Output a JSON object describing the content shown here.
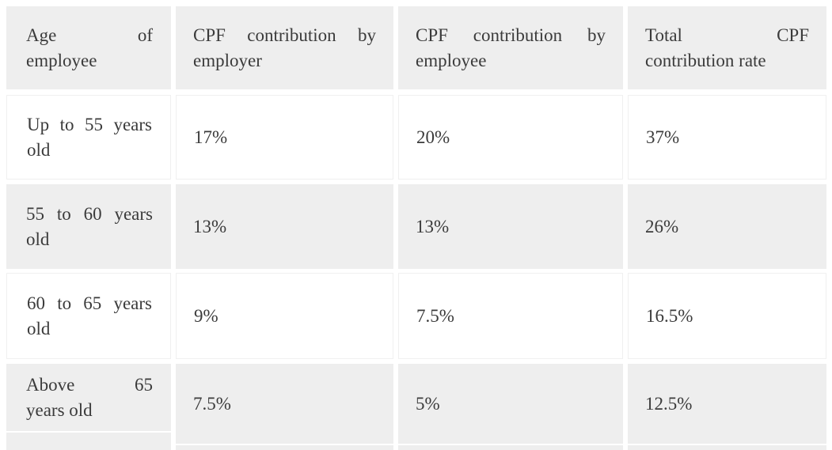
{
  "chart_data": {
    "type": "table",
    "title": "",
    "columns": [
      "Age of employee",
      "CPF contribution by employer",
      "CPF contribution by employee",
      "Total CPF contribution rate"
    ],
    "rows": [
      [
        "Up to 55 years old",
        "17%",
        "20%",
        "37%"
      ],
      [
        "55 to 60 years old",
        "13%",
        "13%",
        "26%"
      ],
      [
        "60 to 65 years old",
        "9%",
        "7.5%",
        "16.5%"
      ],
      [
        "Above 65 years old",
        "7.5%",
        "5%",
        "12.5%"
      ]
    ]
  },
  "display": {
    "headers": [
      {
        "label": "Age of employee",
        "lines": [
          "Age of",
          "employee"
        ]
      },
      {
        "label": "CPF contribution by employer",
        "lines": [
          "CPF contribution by",
          "employer"
        ]
      },
      {
        "label": "CPF contribution by employee",
        "lines": [
          "CPF contribution by",
          "employee"
        ]
      },
      {
        "label": "Total CPF contribution rate",
        "lines": [
          "Total CPF",
          "contribution rate"
        ]
      }
    ],
    "rows": [
      {
        "age_lines": [
          "Up to 55 years",
          "old"
        ],
        "employer": "17%",
        "employee": "20%",
        "total": "37%"
      },
      {
        "age_lines": [
          "55 to 60 years",
          "old"
        ],
        "employer": "13%",
        "employee": "13%",
        "total": "26%"
      },
      {
        "age_lines": [
          "60 to 65 years",
          "old"
        ],
        "employer": "9%",
        "employee": "7.5%",
        "total": "16.5%"
      },
      {
        "age_lines": [
          "Above 65",
          "years old"
        ],
        "employer": "7.5%",
        "employee": "5%",
        "total": "12.5%"
      }
    ],
    "colors": {
      "cell_gray": "#eeeeee",
      "cell_white": "#ffffff",
      "text": "#3b3b3b",
      "page_background": "#ffffff"
    }
  }
}
